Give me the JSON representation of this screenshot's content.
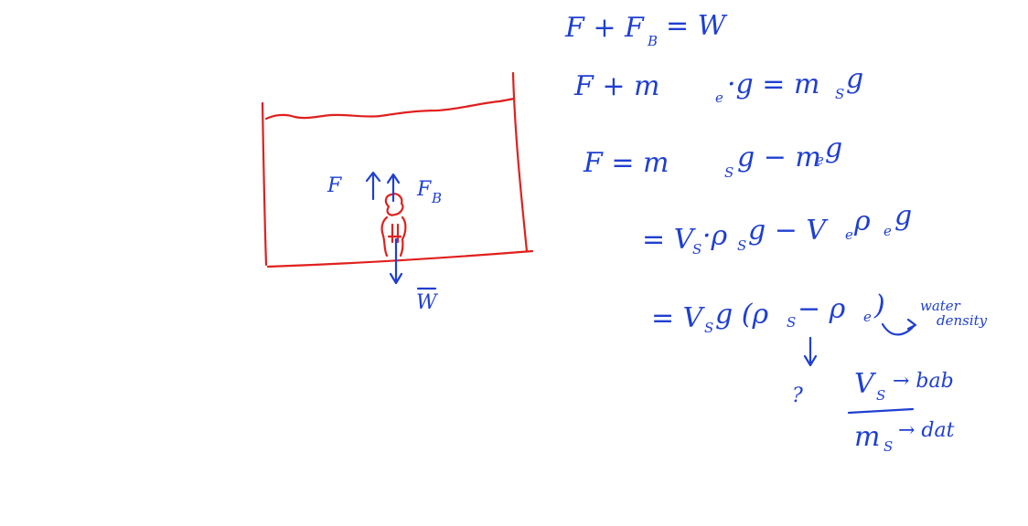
{
  "diagram": {
    "force_labels": {
      "left_force": "F",
      "buoyant_force": "F",
      "buoyant_subscript": "B",
      "weight": "W"
    }
  },
  "equations": {
    "line1": "F + F",
    "line1_sub": "B",
    "line1_rhs": "= W",
    "line2": "F   + m",
    "line2_sub": "e",
    "line2_rest": "·g = m",
    "line2_sub2": "S",
    "line2_end": " g",
    "line3": "F   = m",
    "line3_sub": "S",
    "line3_rest": "g − m",
    "line3_sub2": "e",
    "line3_end": "g",
    "line4": "= V",
    "line4_sub": "S",
    "line4_rest": "·ρ",
    "line4_sub2": "S",
    "line4_mid": "g − V",
    "line4_sub3": "e",
    "line4_mid2": " ρ",
    "line4_sub4": "e",
    "line4_end": "g",
    "line5": "= V",
    "line5_sub": "S",
    "line5_rest": "g (ρ",
    "line5_sub2": "S",
    "line5_mid": " − ρ",
    "line5_sub3": "e",
    "line5_end": ")",
    "annotation_line1": "water",
    "annotation_line2": "density",
    "unknown_mark": "?",
    "fraction_num": "V",
    "fraction_num_sub": "S",
    "fraction_num_note": "→ bab",
    "fraction_den": "m",
    "fraction_den_sub": "S",
    "fraction_den_note": "→ dat"
  },
  "colors": {
    "ink_blue": "#1f3fd1",
    "ink_red": "#e0201e",
    "background": "#ffffff"
  }
}
